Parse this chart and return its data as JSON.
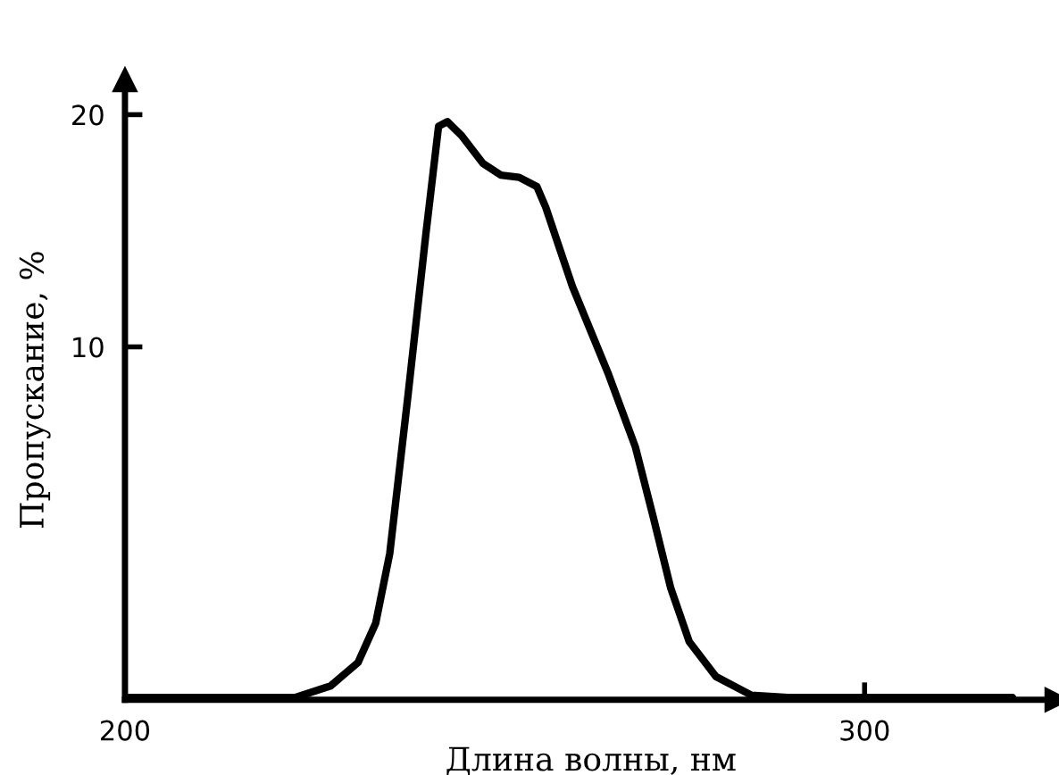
{
  "chart_data": {
    "type": "line",
    "xlabel": "Длина волны, нм",
    "ylabel": "Пропускание, %",
    "xlim": [
      200,
      326
    ],
    "ylim": [
      -5.2,
      21.5
    ],
    "xticks": [
      200,
      300
    ],
    "yticks": [
      10,
      20
    ],
    "grid": false,
    "legend": false,
    "series": [
      {
        "color": "#000000",
        "x": [
          200.5,
          219.4,
          223,
          227.8,
          231.5,
          233.9,
          235.8,
          238.3,
          240.7,
          242.4,
          243.6,
          245.5,
          248.4,
          250.8,
          253.3,
          255.7,
          256.9,
          260.5,
          265.4,
          269.0,
          271.4,
          273.8,
          276.3,
          279.9,
          284.7,
          289.6,
          320
        ],
        "values": [
          -5.1,
          -5.1,
          -5.1,
          -4.6,
          -3.6,
          -1.9,
          1.1,
          8.0,
          14.9,
          19.5,
          19.7,
          19.1,
          17.9,
          17.4,
          17.3,
          16.9,
          16.0,
          12.6,
          8.8,
          5.7,
          2.7,
          -0.4,
          -2.7,
          -4.2,
          -5.0,
          -5.1,
          -5.1
        ]
      }
    ]
  }
}
